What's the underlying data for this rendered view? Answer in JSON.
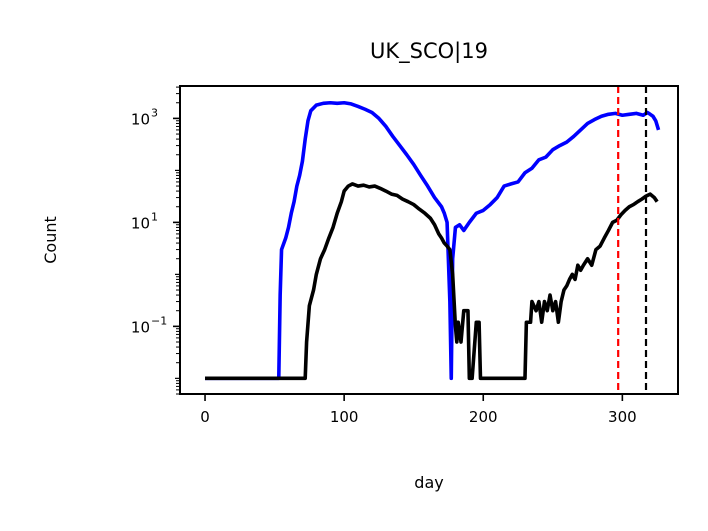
{
  "chart_data": {
    "type": "line",
    "title": "UK_SCO|19",
    "xlabel": "day",
    "ylabel": "Count",
    "xlim": [
      -18,
      340
    ],
    "ylim": [
      0.005,
      4200
    ],
    "yscale": "log",
    "xticks": [
      0,
      100,
      200,
      300
    ],
    "xtick_labels": [
      "0",
      "100",
      "200",
      "300"
    ],
    "yticks": [
      {
        "value": 1000,
        "base": "10",
        "exp": "3"
      },
      {
        "value": 10,
        "base": "10",
        "exp": "1"
      },
      {
        "value": 0.1,
        "base": "10",
        "exp": "−1"
      }
    ],
    "grid": false,
    "vlines": [
      {
        "x": 297,
        "color": "#ff0000",
        "style": "dashed"
      },
      {
        "x": 317,
        "color": "#000000",
        "style": "dashed"
      }
    ],
    "series": [
      {
        "color": "#0000ff",
        "points": [
          [
            0,
            0.01
          ],
          [
            53,
            0.01
          ],
          [
            54,
            0.4
          ],
          [
            55,
            3
          ],
          [
            58,
            5
          ],
          [
            60,
            8
          ],
          [
            62,
            15
          ],
          [
            64,
            25
          ],
          [
            66,
            50
          ],
          [
            68,
            80
          ],
          [
            70,
            150
          ],
          [
            72,
            400
          ],
          [
            74,
            900
          ],
          [
            76,
            1400
          ],
          [
            80,
            1800
          ],
          [
            85,
            1950
          ],
          [
            90,
            2000
          ],
          [
            95,
            1950
          ],
          [
            100,
            2000
          ],
          [
            105,
            1900
          ],
          [
            110,
            1700
          ],
          [
            115,
            1500
          ],
          [
            120,
            1300
          ],
          [
            125,
            1000
          ],
          [
            130,
            700
          ],
          [
            135,
            450
          ],
          [
            140,
            300
          ],
          [
            145,
            200
          ],
          [
            150,
            130
          ],
          [
            155,
            80
          ],
          [
            160,
            50
          ],
          [
            165,
            30
          ],
          [
            170,
            20
          ],
          [
            172,
            15
          ],
          [
            174,
            10
          ],
          [
            176,
            0.3
          ],
          [
            177,
            0.01
          ],
          [
            178,
            2
          ],
          [
            180,
            8
          ],
          [
            183,
            9
          ],
          [
            186,
            7
          ],
          [
            190,
            10
          ],
          [
            195,
            15
          ],
          [
            200,
            17
          ],
          [
            205,
            22
          ],
          [
            210,
            30
          ],
          [
            215,
            50
          ],
          [
            220,
            55
          ],
          [
            225,
            60
          ],
          [
            230,
            90
          ],
          [
            235,
            110
          ],
          [
            240,
            160
          ],
          [
            245,
            180
          ],
          [
            250,
            250
          ],
          [
            255,
            300
          ],
          [
            260,
            350
          ],
          [
            265,
            450
          ],
          [
            270,
            600
          ],
          [
            275,
            800
          ],
          [
            280,
            950
          ],
          [
            285,
            1100
          ],
          [
            290,
            1200
          ],
          [
            295,
            1250
          ],
          [
            300,
            1150
          ],
          [
            305,
            1200
          ],
          [
            310,
            1250
          ],
          [
            315,
            1150
          ],
          [
            318,
            1300
          ],
          [
            320,
            1200
          ],
          [
            322,
            1100
          ],
          [
            324,
            900
          ],
          [
            326,
            600
          ]
        ]
      },
      {
        "color": "#000000",
        "points": [
          [
            0,
            0.01
          ],
          [
            72,
            0.01
          ],
          [
            73,
            0.05
          ],
          [
            75,
            0.25
          ],
          [
            78,
            0.5
          ],
          [
            80,
            1
          ],
          [
            83,
            2
          ],
          [
            86,
            3
          ],
          [
            89,
            5
          ],
          [
            92,
            8
          ],
          [
            95,
            15
          ],
          [
            98,
            25
          ],
          [
            100,
            40
          ],
          [
            103,
            50
          ],
          [
            106,
            55
          ],
          [
            110,
            50
          ],
          [
            114,
            52
          ],
          [
            118,
            48
          ],
          [
            122,
            50
          ],
          [
            126,
            45
          ],
          [
            130,
            40
          ],
          [
            134,
            35
          ],
          [
            138,
            33
          ],
          [
            142,
            28
          ],
          [
            146,
            25
          ],
          [
            150,
            22
          ],
          [
            154,
            18
          ],
          [
            158,
            15
          ],
          [
            162,
            12
          ],
          [
            165,
            9
          ],
          [
            168,
            6
          ],
          [
            170,
            5
          ],
          [
            172,
            4
          ],
          [
            174,
            3.5
          ],
          [
            176,
            3
          ],
          [
            178,
            1
          ],
          [
            180,
            0.1
          ],
          [
            181,
            0.05
          ],
          [
            182,
            0.12
          ],
          [
            184,
            0.05
          ],
          [
            186,
            0.2
          ],
          [
            189,
            0.2
          ],
          [
            190,
            0.01
          ],
          [
            192,
            0.01
          ],
          [
            195,
            0.12
          ],
          [
            197,
            0.12
          ],
          [
            198,
            0.01
          ],
          [
            230,
            0.01
          ],
          [
            231,
            0.12
          ],
          [
            234,
            0.12
          ],
          [
            235,
            0.3
          ],
          [
            238,
            0.2
          ],
          [
            240,
            0.3
          ],
          [
            242,
            0.12
          ],
          [
            244,
            0.3
          ],
          [
            246,
            0.2
          ],
          [
            248,
            0.4
          ],
          [
            250,
            0.2
          ],
          [
            252,
            0.3
          ],
          [
            254,
            0.12
          ],
          [
            256,
            0.3
          ],
          [
            258,
            0.5
          ],
          [
            260,
            0.6
          ],
          [
            262,
            0.8
          ],
          [
            264,
            1
          ],
          [
            266,
            0.8
          ],
          [
            268,
            1.5
          ],
          [
            270,
            1.2
          ],
          [
            272,
            1.5
          ],
          [
            275,
            2
          ],
          [
            278,
            1.5
          ],
          [
            281,
            3
          ],
          [
            284,
            3.5
          ],
          [
            287,
            5
          ],
          [
            290,
            7
          ],
          [
            293,
            10
          ],
          [
            296,
            11
          ],
          [
            299,
            14
          ],
          [
            302,
            17
          ],
          [
            305,
            20
          ],
          [
            308,
            22
          ],
          [
            311,
            25
          ],
          [
            314,
            28
          ],
          [
            317,
            32
          ],
          [
            320,
            35
          ],
          [
            323,
            30
          ],
          [
            325,
            25
          ]
        ]
      }
    ]
  }
}
